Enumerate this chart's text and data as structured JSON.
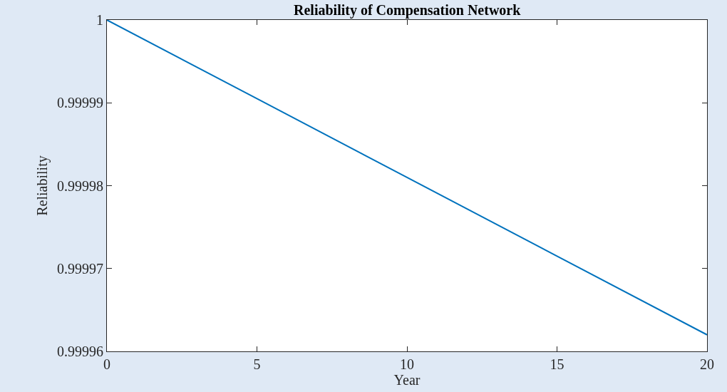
{
  "chart_data": {
    "type": "line",
    "title": "Reliability of Compensation Network",
    "xlabel": "Year",
    "ylabel": "Reliability",
    "x": [
      0,
      5,
      10,
      15,
      20
    ],
    "series": [
      {
        "color": "#0072bd",
        "values": [
          1,
          0.9999905,
          0.999981,
          0.9999715,
          0.999962
        ]
      }
    ],
    "xlim": [
      0,
      20
    ],
    "xticks": [
      0,
      5,
      10,
      15,
      20
    ],
    "ylim": [
      0.99996,
      1
    ],
    "yticks": [
      0.99996,
      0.99997,
      0.99998,
      0.99999,
      1
    ],
    "grid": false,
    "legend": false,
    "marker": "none",
    "line_style": "solid"
  }
}
